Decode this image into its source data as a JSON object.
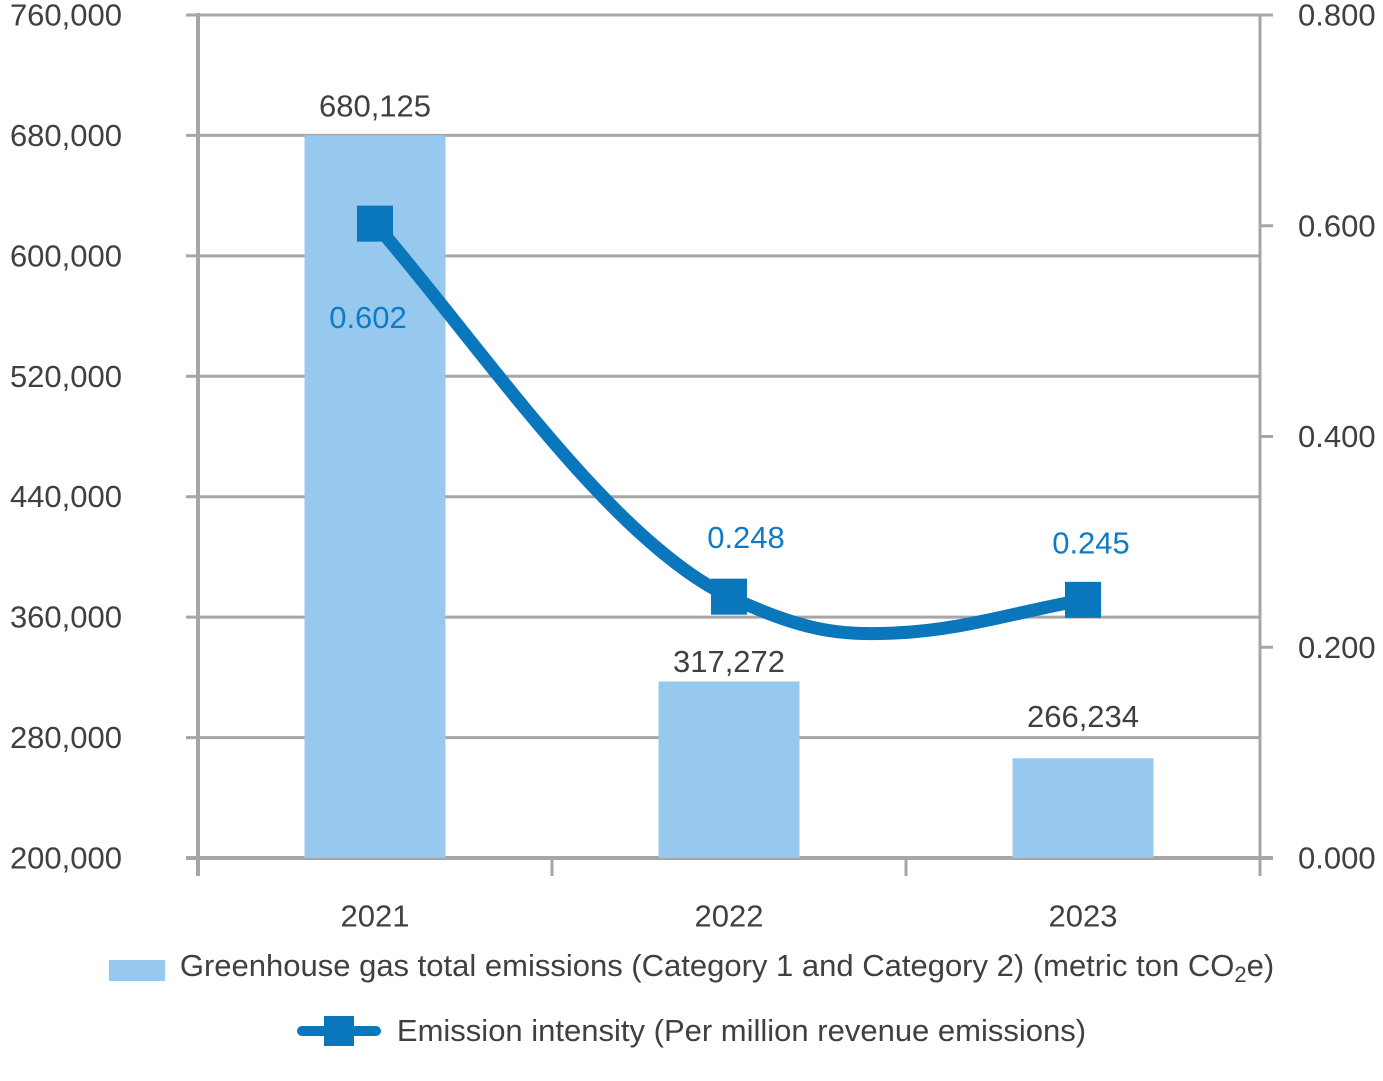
{
  "chart_data": {
    "type": "bar",
    "combo": "bar+line",
    "categories": [
      "2021",
      "2022",
      "2023"
    ],
    "series": [
      {
        "name": "Greenhouse gas total emissions (Category 1 and Category 2) (metric ton CO₂e)",
        "type": "bar",
        "axis": "left",
        "values": [
          680125,
          317272,
          266234
        ],
        "labels": [
          "680,125",
          "317,272",
          "266,234"
        ]
      },
      {
        "name": "Emission intensity (Per million revenue emissions)",
        "type": "line",
        "axis": "right",
        "marker": "square",
        "values": [
          0.602,
          0.248,
          0.245
        ],
        "labels": [
          "0.602",
          "0.248",
          "0.245"
        ]
      }
    ],
    "left_axis": {
      "min": 200000,
      "max": 760000,
      "step": 80000,
      "tick_labels": [
        "760,000",
        "680,000",
        "600,000",
        "520,000",
        "440,000",
        "360,000",
        "280,000",
        "200,000"
      ]
    },
    "right_axis": {
      "min": 0.0,
      "max": 0.8,
      "step": 0.2,
      "tick_labels": [
        "0.800",
        "0.600",
        "0.400",
        "0.200",
        "0.000"
      ]
    },
    "grid": true,
    "legend_position": "bottom",
    "colors": {
      "bar": "#97c8ed",
      "line": "#0a76bc",
      "line_label_text": "#0e7cc4",
      "bar_label_text": "#3f3f3f",
      "axis_text": "#404040",
      "grid": "#a6a6a6"
    }
  },
  "legend": {
    "bar": {
      "pre": "Greenhouse gas total emissions (Category 1 and Category 2) (metric ton CO",
      "sub": "2",
      "post": "e)"
    },
    "line": {
      "label": "Emission intensity (Per million revenue emissions)"
    }
  }
}
